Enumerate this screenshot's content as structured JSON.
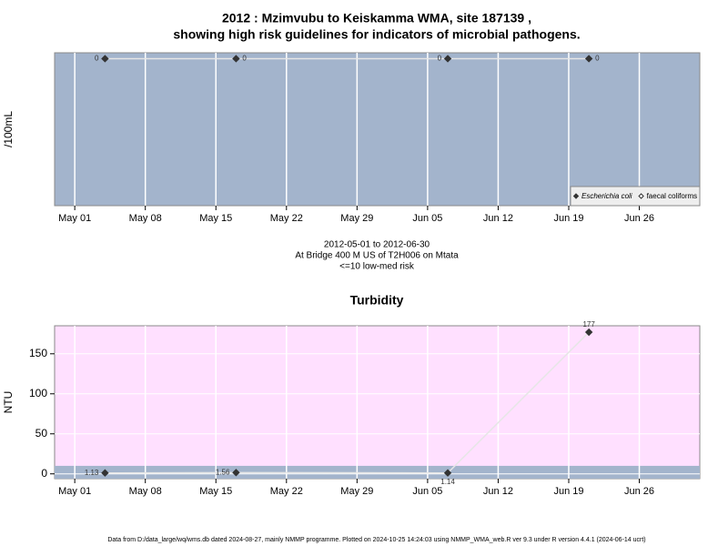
{
  "chart_data": [
    {
      "type": "line",
      "title": "2012 : Mzimvubu to Keiskamma WMA, site 187139 ,",
      "subtitle": "showing high risk guidelines for indicators of microbial pathogens.",
      "ylabel": "/100mL",
      "x": [
        "May 04",
        "May 17",
        "Jun 07",
        "Jun 21"
      ],
      "xlim": [
        "Apr 29",
        "Jul 02"
      ],
      "xticks": [
        "May 01",
        "May 08",
        "May 15",
        "May 22",
        "May 29",
        "Jun 05",
        "Jun 12",
        "Jun 19",
        "Jun 26"
      ],
      "ylim": [
        -1,
        0.04
      ],
      "background": "#a3b4cc",
      "grid": true,
      "legend": "bottom-right",
      "series": [
        {
          "name": "Escherichia coli",
          "color": "#333333",
          "marker": "filled",
          "values": [
            0,
            0,
            0,
            0
          ]
        },
        {
          "name": "faecal coliforms",
          "color": "#333333",
          "marker": "open",
          "values": [
            null,
            null,
            null,
            null
          ]
        }
      ]
    },
    {
      "type": "line",
      "title": "Turbidity",
      "ylabel": "NTU",
      "x": [
        "May 04",
        "May 17",
        "Jun 07",
        "Jun 21"
      ],
      "xlim": [
        "Apr 29",
        "Jul 02"
      ],
      "xticks": [
        "May 01",
        "May 08",
        "May 15",
        "May 22",
        "May 29",
        "Jun 05",
        "Jun 12",
        "Jun 19",
        "Jun 26"
      ],
      "ylim": [
        -6,
        185
      ],
      "yticks": [
        0,
        50,
        100,
        150
      ],
      "background": "#ffe0ff",
      "band_max": 10,
      "band_color": "#a3b4cc",
      "grid": true,
      "series": [
        {
          "color": "#333333",
          "marker": "filled",
          "values": [
            1.13,
            1.56,
            1.14,
            177
          ]
        }
      ]
    }
  ],
  "period": "2012-05-01 to 2012-06-30",
  "site": "At Bridge 400 M US of T2H006 on Mtata",
  "risk": "<=10 low-med risk",
  "footer": "Data from D:/data_large/wq/wms.db dated 2024-08-27, mainly NMMP programme. Plotted on 2024-10-25 14:24:03 using NMMP_WMA_web.R ver 9.3 under R version 4.4.1 (2024-06-14 ucrt)"
}
